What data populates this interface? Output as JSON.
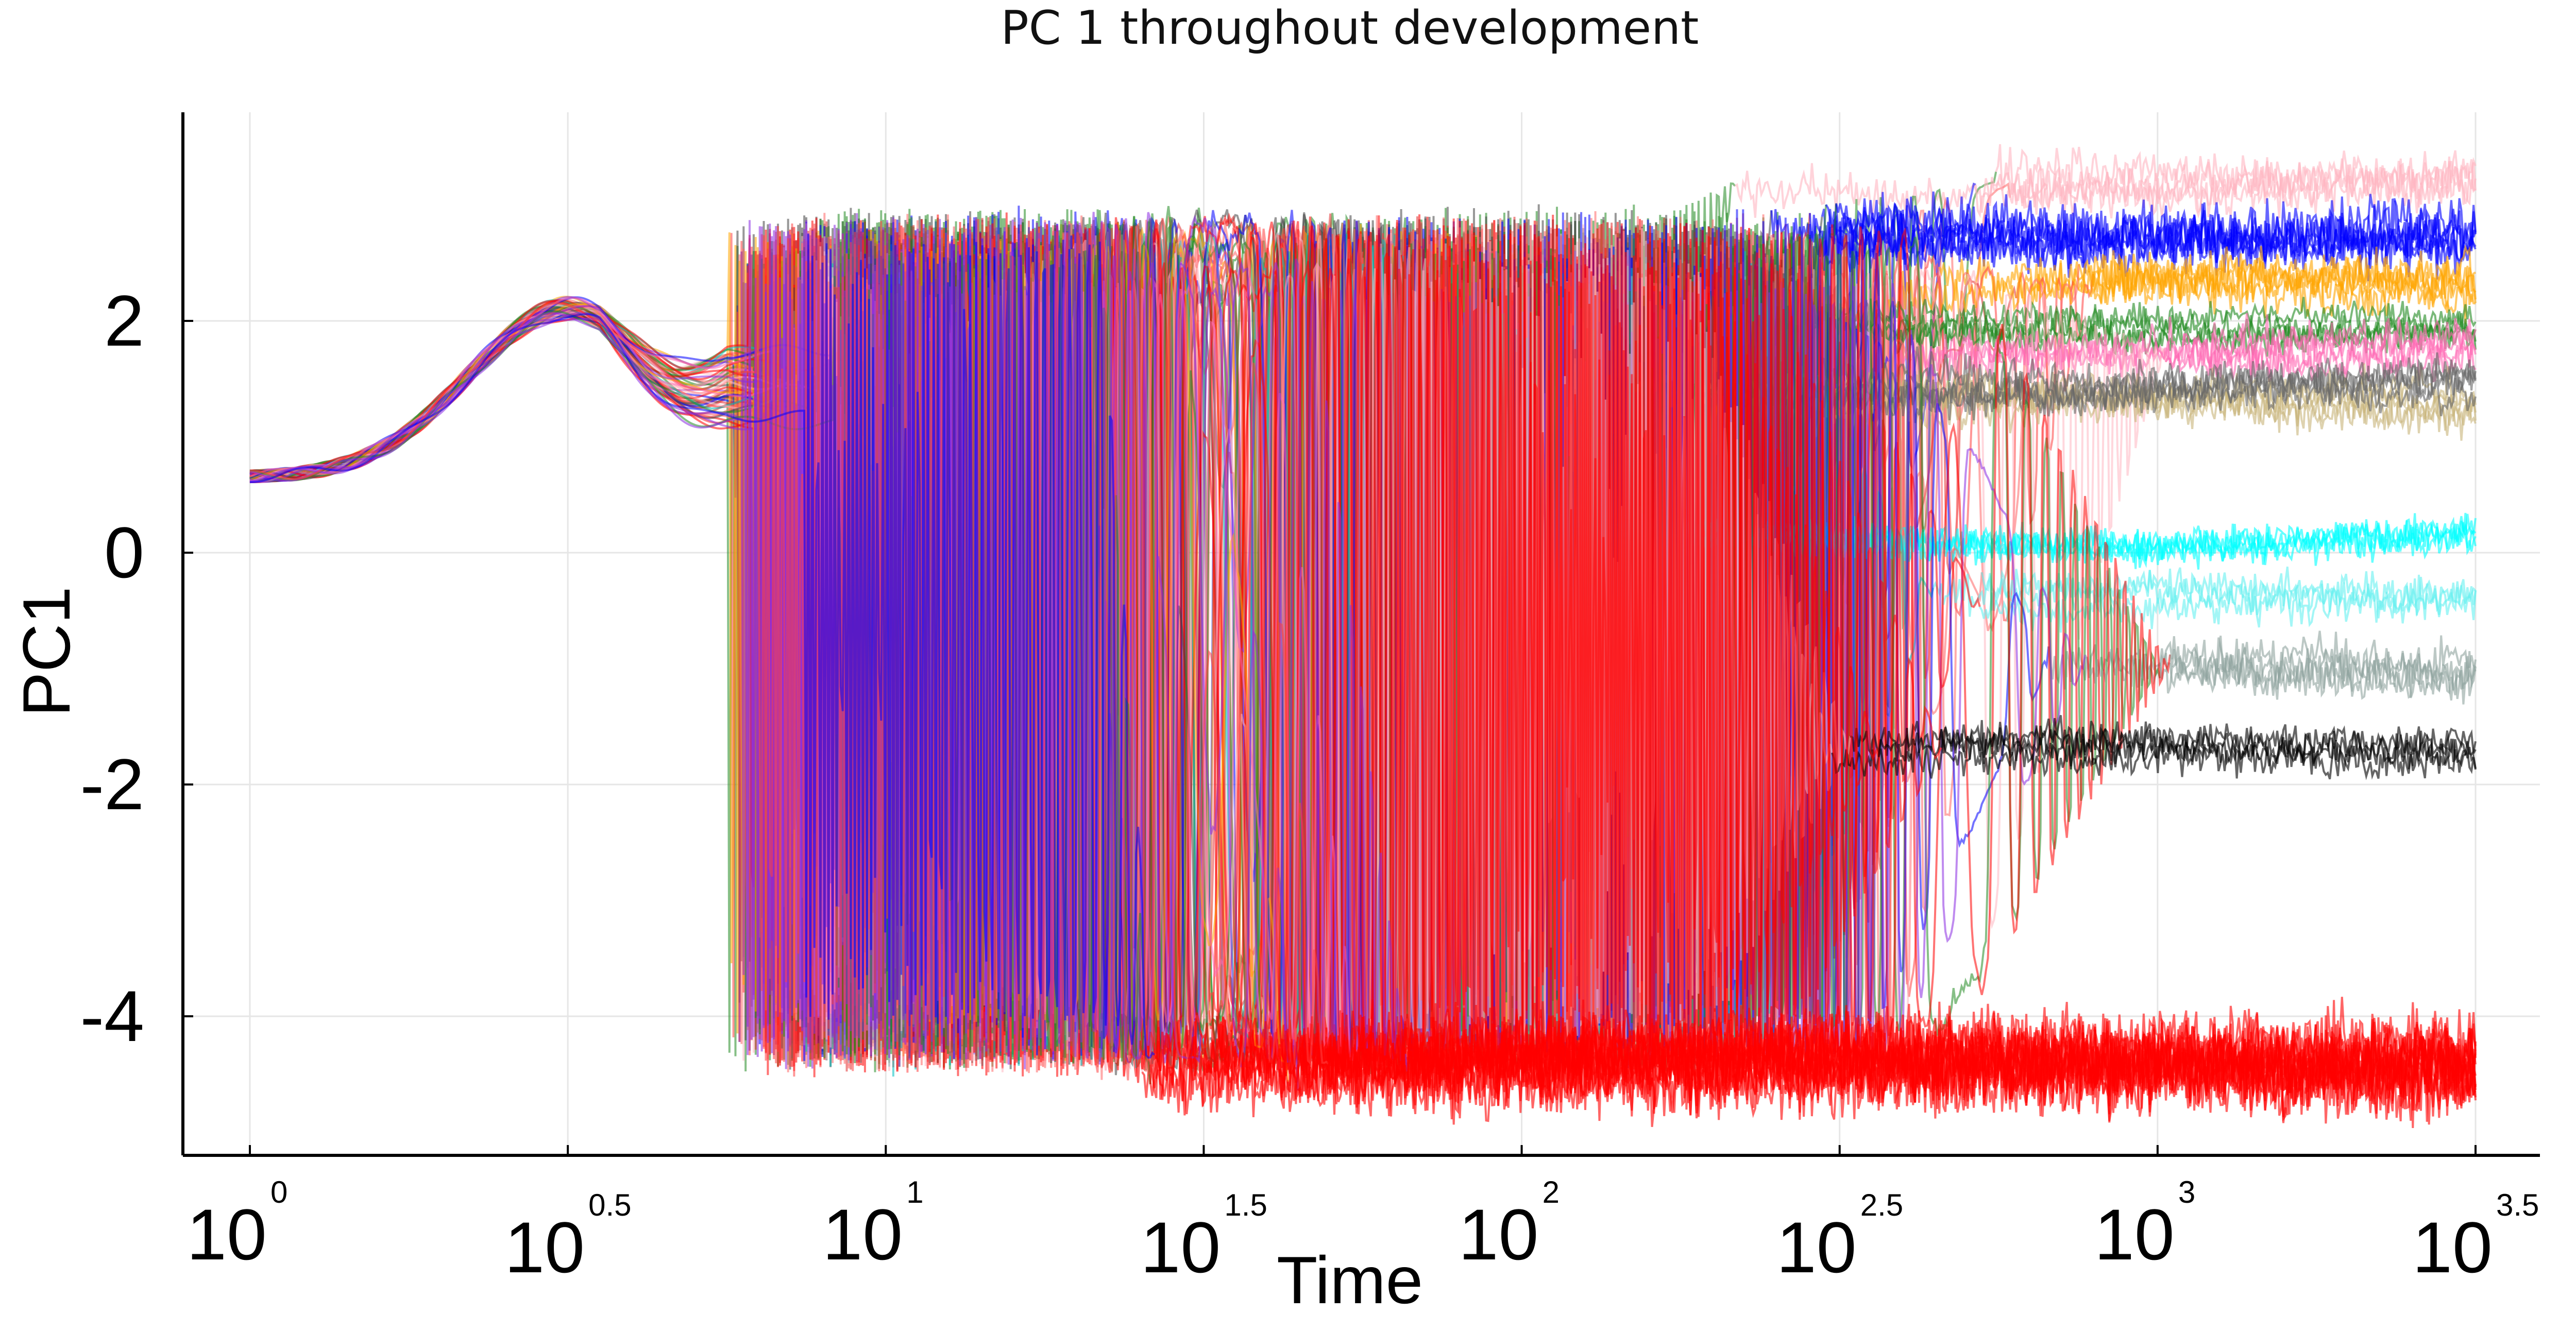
{
  "chart_data": {
    "type": "line",
    "title": "PC 1 throughout development",
    "xlabel": "Time",
    "ylabel": "PC1",
    "xscale": "log10",
    "xlim_exponent": [
      0,
      3.5
    ],
    "ylim": [
      -5.2,
      3.8
    ],
    "x_ticks": [
      {
        "base": "10",
        "exp": "0"
      },
      {
        "base": "10",
        "exp": "0.5"
      },
      {
        "base": "10",
        "exp": "1"
      },
      {
        "base": "10",
        "exp": "1.5"
      },
      {
        "base": "10",
        "exp": "2"
      },
      {
        "base": "10",
        "exp": "2.5"
      },
      {
        "base": "10",
        "exp": "3"
      },
      {
        "base": "10",
        "exp": "3.5"
      }
    ],
    "y_ticks": [
      {
        "value": 2,
        "label": "2"
      },
      {
        "value": 0,
        "label": "0"
      },
      {
        "value": -2,
        "label": "-2"
      },
      {
        "value": -4,
        "label": "-4"
      }
    ],
    "grid": true,
    "legend": "none",
    "series_count": 60,
    "initial_value": 0.65,
    "early_peak": {
      "log10_time": 0.5,
      "value": 2.1
    },
    "attractors": [
      {
        "name": "pink",
        "color": "#ffb6c1",
        "final_value": 3.2,
        "settle_log10_time": 2.55,
        "noise": 0.1,
        "members": 4
      },
      {
        "name": "blue",
        "color": "#0000ff",
        "final_value": 2.75,
        "settle_log10_time": 2.6,
        "noise": 0.12,
        "members": 6
      },
      {
        "name": "orange",
        "color": "#ffa500",
        "final_value": 2.3,
        "settle_log10_time": 2.7,
        "noise": 0.1,
        "members": 5
      },
      {
        "name": "green",
        "color": "#228b22",
        "final_value": 1.95,
        "settle_log10_time": 2.5,
        "noise": 0.07,
        "members": 4
      },
      {
        "name": "hotpink",
        "color": "#ff69b4",
        "final_value": 1.75,
        "settle_log10_time": 2.8,
        "noise": 0.09,
        "members": 4
      },
      {
        "name": "tan",
        "color": "#c8b47a",
        "final_value": 1.3,
        "settle_log10_time": 2.3,
        "noise": 0.09,
        "members": 4
      },
      {
        "name": "dimgray",
        "color": "#666666",
        "final_value": 1.45,
        "settle_log10_time": 2.3,
        "noise": 0.09,
        "members": 4
      },
      {
        "name": "cyan",
        "color": "#00ffff",
        "final_value": 0.15,
        "settle_log10_time": 2.2,
        "noise": 0.08,
        "members": 4
      },
      {
        "name": "lightcyan",
        "color": "#66f0f0",
        "final_value": -0.4,
        "settle_log10_time": 2.5,
        "noise": 0.08,
        "members": 3
      },
      {
        "name": "gray",
        "color": "#8fa39f",
        "final_value": -1.0,
        "settle_log10_time": 2.8,
        "noise": 0.1,
        "members": 4
      },
      {
        "name": "black",
        "color": "#000000",
        "final_value": -1.7,
        "settle_log10_time": 2.45,
        "noise": 0.08,
        "members": 4
      },
      {
        "name": "red",
        "color": "#ff0000",
        "final_value": -4.4,
        "settle_log10_time": 1.6,
        "noise": 0.18,
        "members": 14
      }
    ]
  }
}
